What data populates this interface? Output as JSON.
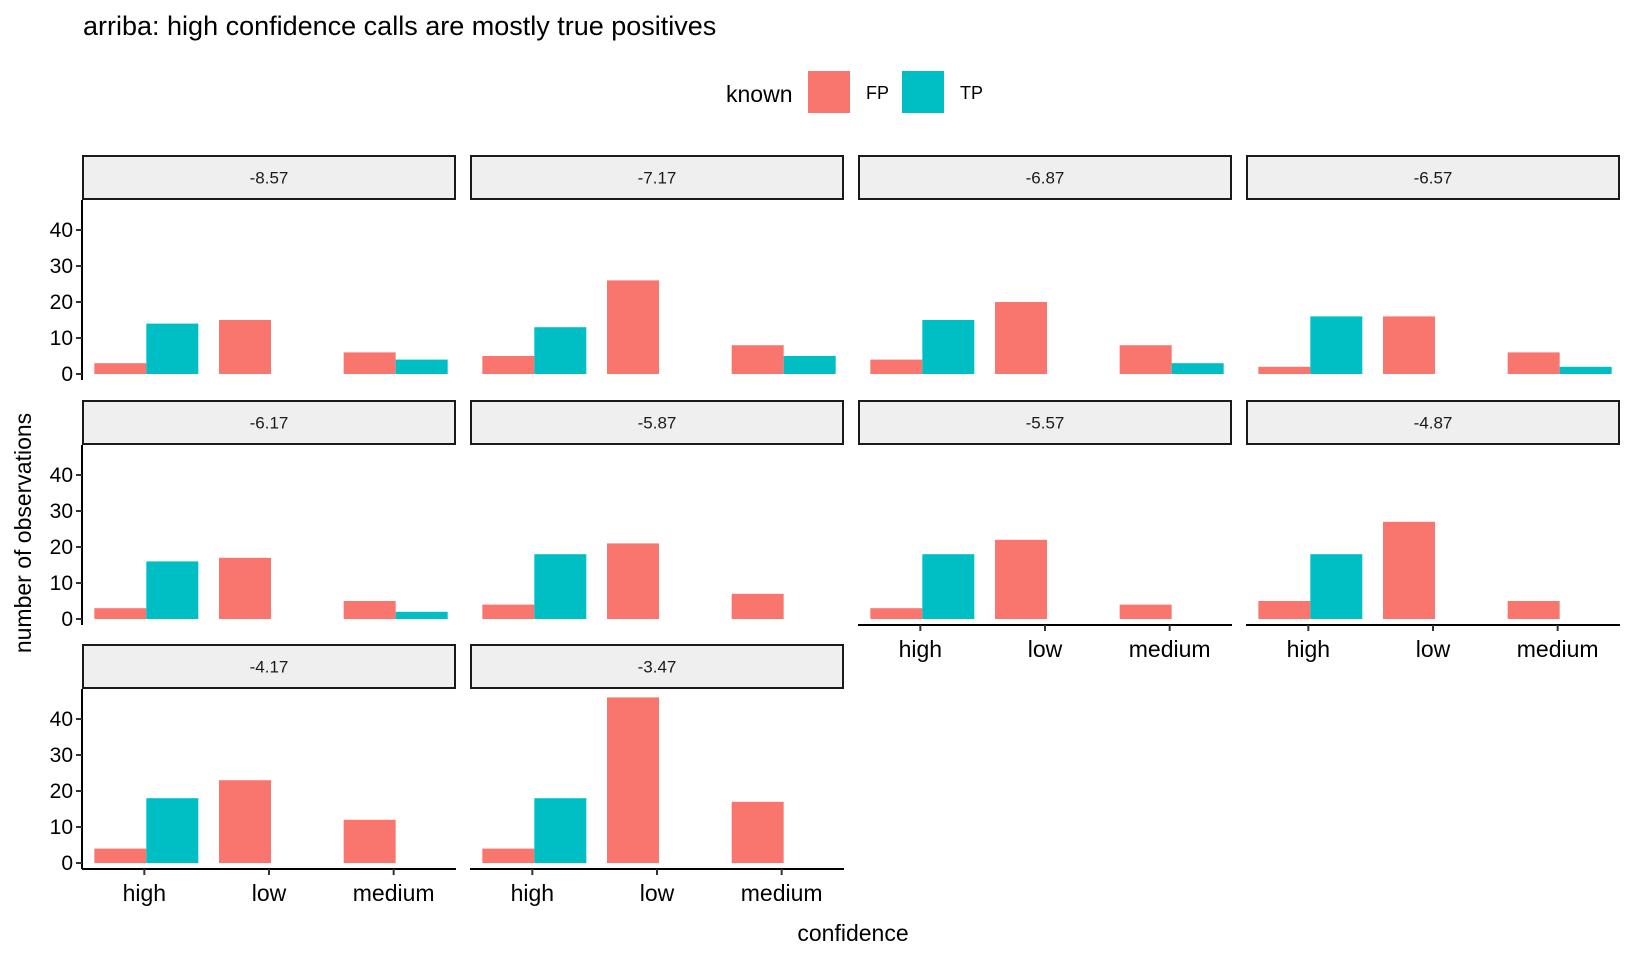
{
  "chart_data": {
    "type": "bar",
    "title": "arriba: high confidence calls are mostly true positives",
    "xlabel": "confidence",
    "ylabel": "number of observations",
    "categories": [
      "high",
      "low",
      "medium"
    ],
    "legend": {
      "title": "known",
      "position": "top",
      "entries": [
        "FP",
        "TP"
      ]
    },
    "colors": {
      "FP": "#F8766D",
      "TP": "#00BFC4"
    },
    "ylim": [
      0,
      48
    ],
    "yticks": [
      0,
      10,
      20,
      30,
      40
    ],
    "grid": false,
    "facet_ncol": 4,
    "facets": [
      {
        "label": "-8.57",
        "series": [
          {
            "name": "FP",
            "values": [
              3,
              15,
              6
            ]
          },
          {
            "name": "TP",
            "values": [
              14,
              null,
              4
            ]
          }
        ]
      },
      {
        "label": "-7.17",
        "series": [
          {
            "name": "FP",
            "values": [
              5,
              26,
              8
            ]
          },
          {
            "name": "TP",
            "values": [
              13,
              null,
              5
            ]
          }
        ]
      },
      {
        "label": "-6.87",
        "series": [
          {
            "name": "FP",
            "values": [
              4,
              20,
              8
            ]
          },
          {
            "name": "TP",
            "values": [
              15,
              null,
              3
            ]
          }
        ]
      },
      {
        "label": "-6.57",
        "series": [
          {
            "name": "FP",
            "values": [
              2,
              16,
              6
            ]
          },
          {
            "name": "TP",
            "values": [
              16,
              null,
              2
            ]
          }
        ]
      },
      {
        "label": "-6.17",
        "series": [
          {
            "name": "FP",
            "values": [
              3,
              17,
              5
            ]
          },
          {
            "name": "TP",
            "values": [
              16,
              null,
              2
            ]
          }
        ]
      },
      {
        "label": "-5.87",
        "series": [
          {
            "name": "FP",
            "values": [
              4,
              21,
              7
            ]
          },
          {
            "name": "TP",
            "values": [
              18,
              null,
              null
            ]
          }
        ]
      },
      {
        "label": "-5.57",
        "series": [
          {
            "name": "FP",
            "values": [
              3,
              22,
              4
            ]
          },
          {
            "name": "TP",
            "values": [
              18,
              null,
              null
            ]
          }
        ]
      },
      {
        "label": "-4.87",
        "series": [
          {
            "name": "FP",
            "values": [
              5,
              27,
              5
            ]
          },
          {
            "name": "TP",
            "values": [
              18,
              null,
              null
            ]
          }
        ]
      },
      {
        "label": "-4.17",
        "series": [
          {
            "name": "FP",
            "values": [
              4,
              23,
              12
            ]
          },
          {
            "name": "TP",
            "values": [
              18,
              null,
              null
            ]
          }
        ]
      },
      {
        "label": "-3.47",
        "series": [
          {
            "name": "FP",
            "values": [
              4,
              46,
              17
            ]
          },
          {
            "name": "TP",
            "values": [
              18,
              null,
              null
            ]
          }
        ]
      }
    ]
  }
}
